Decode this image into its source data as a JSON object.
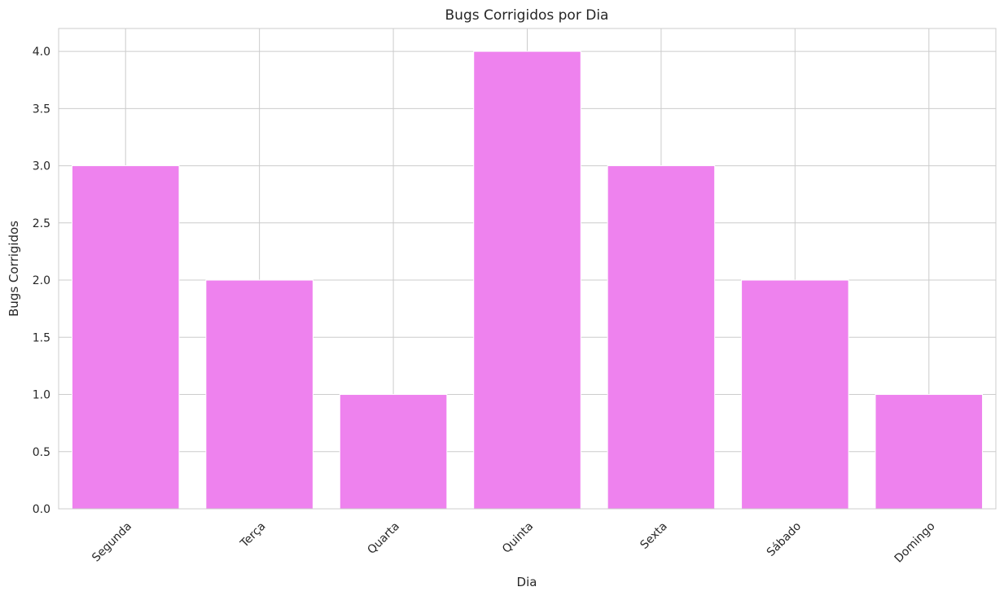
{
  "chart_data": {
    "type": "bar",
    "title": "Bugs Corrigidos por Dia",
    "xlabel": "Dia",
    "ylabel": "Bugs Corrigidos",
    "categories": [
      "Segunda",
      "Terça",
      "Quarta",
      "Quinta",
      "Sexta",
      "Sábado",
      "Domingo"
    ],
    "values": [
      3,
      2,
      1,
      4,
      3,
      2,
      1
    ],
    "ylim": [
      0,
      4.2
    ],
    "yticks": [
      "0.0",
      "0.5",
      "1.0",
      "1.5",
      "2.0",
      "2.5",
      "3.0",
      "3.5",
      "4.0"
    ],
    "grid": true,
    "bar_color": "#ee82ee",
    "grid_color": "#cccccc",
    "axes_edge_color": "#cccccc",
    "text_color": "#262626"
  }
}
